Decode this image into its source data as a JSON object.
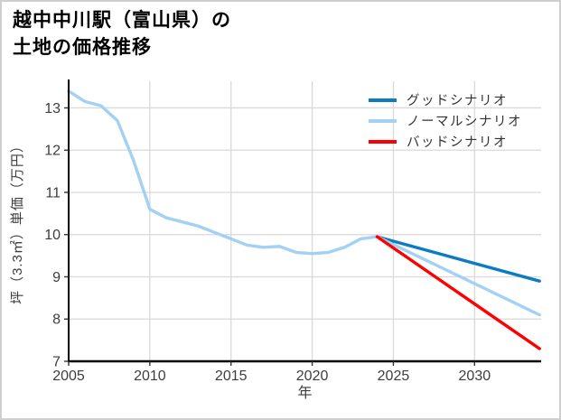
{
  "title": {
    "line1": "越中中川駅（富山県）の",
    "line2": "土地の価格推移"
  },
  "legend": {
    "items": [
      {
        "label": "グッドシナリオ",
        "color": "#0d7ac4"
      },
      {
        "label": "ノーマルシナリオ",
        "color": "#a2d1f4"
      },
      {
        "label": "バッドシナリオ",
        "color": "#ff0000"
      }
    ]
  },
  "chart_data": {
    "type": "line",
    "title": "越中中川駅（富山県）の土地の価格推移",
    "xlabel": "年",
    "ylabel": "坪（3.3㎡）単価（万円）",
    "xlim": [
      2005,
      2034.1
    ],
    "ylim": [
      7,
      13.63
    ],
    "x_ticks": [
      2005,
      2010,
      2015,
      2020,
      2025,
      2030
    ],
    "y_ticks": [
      7,
      8,
      9,
      10,
      11,
      12,
      13
    ],
    "grid": true,
    "legend_position": "top-right",
    "colors": {
      "grid": "#d9d9d9",
      "axis": "#000000",
      "tick_text": "#3d3d3d"
    },
    "series": [
      {
        "id": "historical",
        "name": "",
        "color": "#a2d1f4",
        "x": [
          2005,
          2006,
          2007,
          2008,
          2009,
          2010,
          2011,
          2012,
          2013,
          2014,
          2015,
          2016,
          2017,
          2018,
          2019,
          2020,
          2021,
          2022,
          2023,
          2024
        ],
        "y": [
          13.4,
          13.15,
          13.05,
          12.7,
          11.75,
          10.6,
          10.4,
          10.3,
          10.2,
          10.05,
          9.9,
          9.75,
          9.7,
          9.72,
          9.58,
          9.55,
          9.58,
          9.7,
          9.9,
          9.95
        ]
      },
      {
        "id": "good-scenario",
        "name": "グッドシナリオ",
        "color": "#0d7ac4",
        "x": [
          2024,
          2034
        ],
        "y": [
          9.95,
          8.9
        ]
      },
      {
        "id": "normal-scenario",
        "name": "ノーマルシナリオ",
        "color": "#a2d1f4",
        "x": [
          2024,
          2034
        ],
        "y": [
          9.95,
          8.1
        ]
      },
      {
        "id": "bad-scenario",
        "name": "バッドシナリオ",
        "color": "#ff0000",
        "x": [
          2024,
          2034
        ],
        "y": [
          9.95,
          7.3
        ]
      }
    ]
  }
}
